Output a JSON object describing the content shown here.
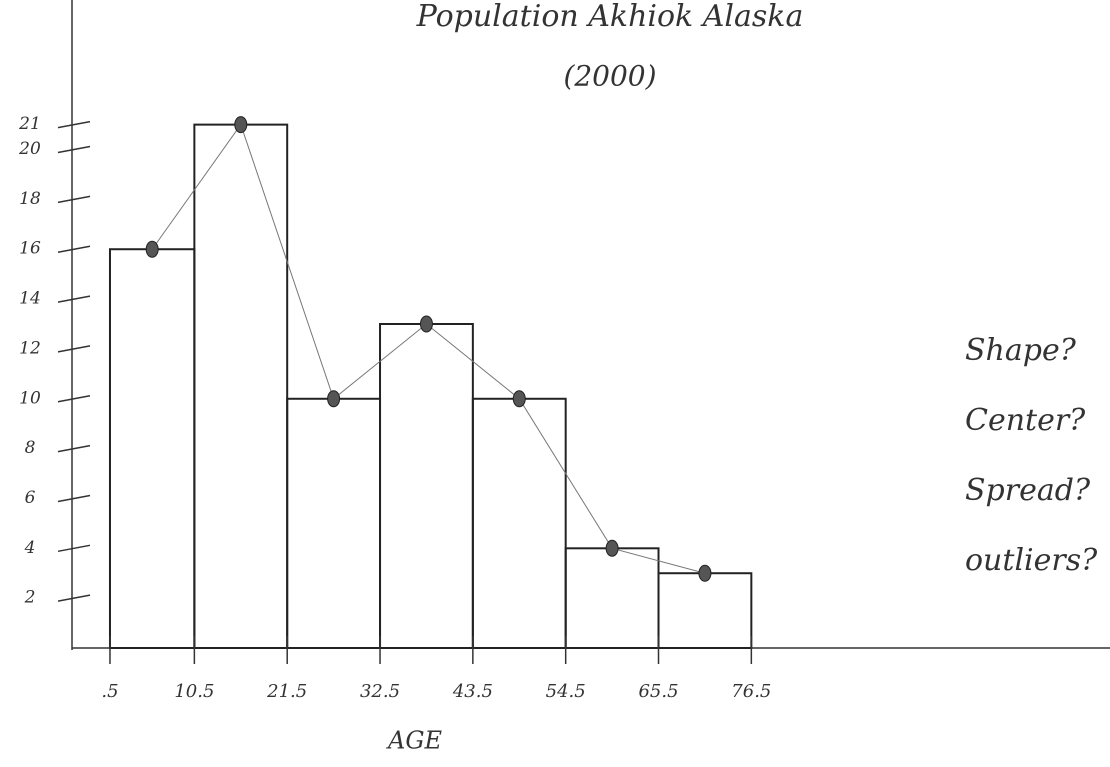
{
  "chart_data": {
    "type": "histogram",
    "title": "Population Akhiok Alaska",
    "subtitle": "(2000)",
    "x_label": "AGE",
    "bins": [
      {
        "value": 0.5,
        "label": ".5"
      },
      10.5,
      21.5,
      32.5,
      43.5,
      54.5,
      65.5,
      76.5
    ],
    "values": [
      16,
      21,
      10,
      13,
      10,
      4,
      3
    ],
    "color": "#222222",
    "xlim": [
      -4,
      119
    ],
    "ylim": [
      0,
      26
    ],
    "yticks": [
      2,
      4,
      6,
      8,
      10,
      12,
      14,
      16,
      18,
      20,
      21
    ],
    "annotations": [
      "Shape?",
      "Center?",
      "Spread?",
      "outliers?"
    ]
  }
}
